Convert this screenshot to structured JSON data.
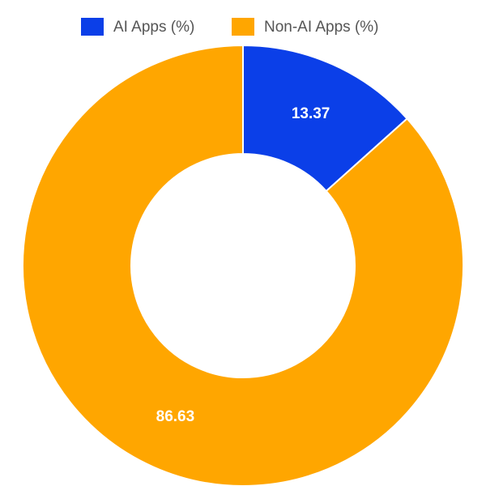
{
  "chart_data": {
    "type": "donut",
    "categories": [
      "AI Apps (%)",
      "Non-AI Apps (%)"
    ],
    "values": [
      13.37,
      86.63
    ],
    "colors": [
      "#0b3fe8",
      "#ffa600"
    ],
    "legend": "top"
  }
}
